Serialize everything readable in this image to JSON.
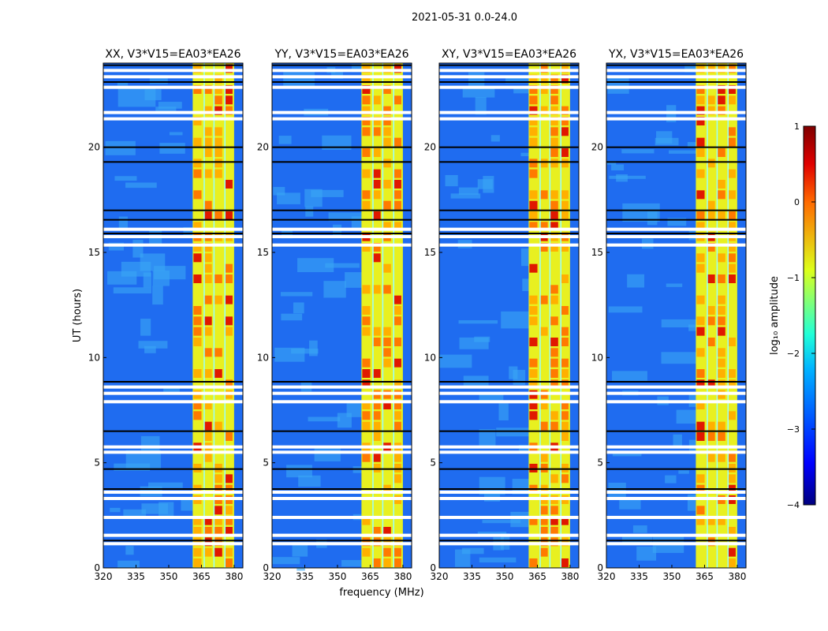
{
  "chart_data": {
    "type": "heatmap",
    "suptitle": "2021-05-31 0.0-24.0",
    "xlabel": "frequency (MHz)",
    "ylabel": "UT (hours)",
    "xlim": [
      320,
      384
    ],
    "ylim": [
      0,
      24
    ],
    "xticks": [
      320,
      335,
      350,
      365,
      380
    ],
    "xtick_labels": [
      "320",
      "335",
      "350",
      "365",
      "380"
    ],
    "yticks": [
      0,
      5,
      10,
      15,
      20
    ],
    "ytick_labels": [
      "0",
      "5",
      "10",
      "15",
      "20"
    ],
    "panels": [
      {
        "title": "XX, V3*V15=EA03*EA26"
      },
      {
        "title": "YY, V3*V15=EA03*EA26"
      },
      {
        "title": "XY, V3*V15=EA03*EA26"
      },
      {
        "title": "YX, V3*V15=EA03*EA26"
      }
    ],
    "rfi_band_mhz": [
      361,
      380
    ],
    "flagged_gaps_hours": [
      23.65,
      23.35,
      22.85,
      21.65,
      21.35,
      16.1,
      15.75,
      15.35,
      8.6,
      8.3,
      7.9,
      5.75,
      5.5,
      3.6,
      3.3,
      2.4,
      1.55,
      1.15
    ],
    "black_lines_hours": [
      23.9,
      23.1,
      20.0,
      19.3,
      17.0,
      16.55,
      15.9,
      8.85,
      6.5,
      4.7,
      3.75,
      1.3
    ],
    "colorbar": {
      "label": "log₁₀ amplitude",
      "range": [
        -4,
        1
      ],
      "ticks": [
        "1",
        "0",
        "−1",
        "−2",
        "−3",
        "−4"
      ],
      "colormap": "jet"
    }
  }
}
